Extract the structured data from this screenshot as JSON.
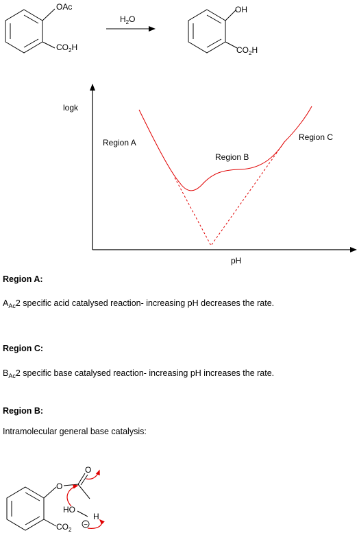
{
  "reaction": {
    "reactant_sub_top": "OAc",
    "reactant_sub_bottom": "CO",
    "reactant_sub_bottom_tail": "H",
    "reagent": "H",
    "reagent_tail": "O",
    "product_sub_top": "OH",
    "product_sub_bottom": "CO",
    "product_sub_bottom_tail": "H",
    "subscript_two": "2"
  },
  "chart_data": {
    "type": "line",
    "title": "",
    "xlabel": "pH",
    "ylabel": "logk",
    "annotations": [
      "Region A",
      "Region B",
      "Region C"
    ],
    "series": [
      {
        "style": "solid",
        "color": "#e00000",
        "description_points": [
          [
            0.1,
            0.92
          ],
          [
            0.42,
            0.4
          ],
          [
            0.5,
            0.42
          ],
          [
            0.88,
            1.0
          ]
        ]
      },
      {
        "style": "dashed",
        "color": "#e00000",
        "description_points": [
          [
            0.2,
            0.6
          ],
          [
            0.48,
            0.0
          ],
          [
            0.8,
            0.7
          ]
        ]
      }
    ],
    "grid": false
  },
  "sections": {
    "region_a": {
      "heading": "Region A:",
      "prefix": "A",
      "sub": "Ac",
      "text": "2 specific acid catalysed reaction- increasing pH decreases the rate."
    },
    "region_c": {
      "heading": "Region C:",
      "prefix": "B",
      "sub": "Ac",
      "text": "2 specific base catalysed reaction- increasing pH increases the rate."
    },
    "region_b": {
      "heading": "Region B:",
      "text": "Intramolecular general base catalysis:"
    }
  },
  "mechanism": {
    "ester_o": "O",
    "carbonyl_o": "O",
    "water": "HO",
    "water_h": "H",
    "carboxylate": "CO",
    "carboxylate_sub": "2",
    "charge": "−"
  },
  "colors": {
    "curve": "#e00000",
    "arrows": "#e00000",
    "ink": "#000000"
  }
}
